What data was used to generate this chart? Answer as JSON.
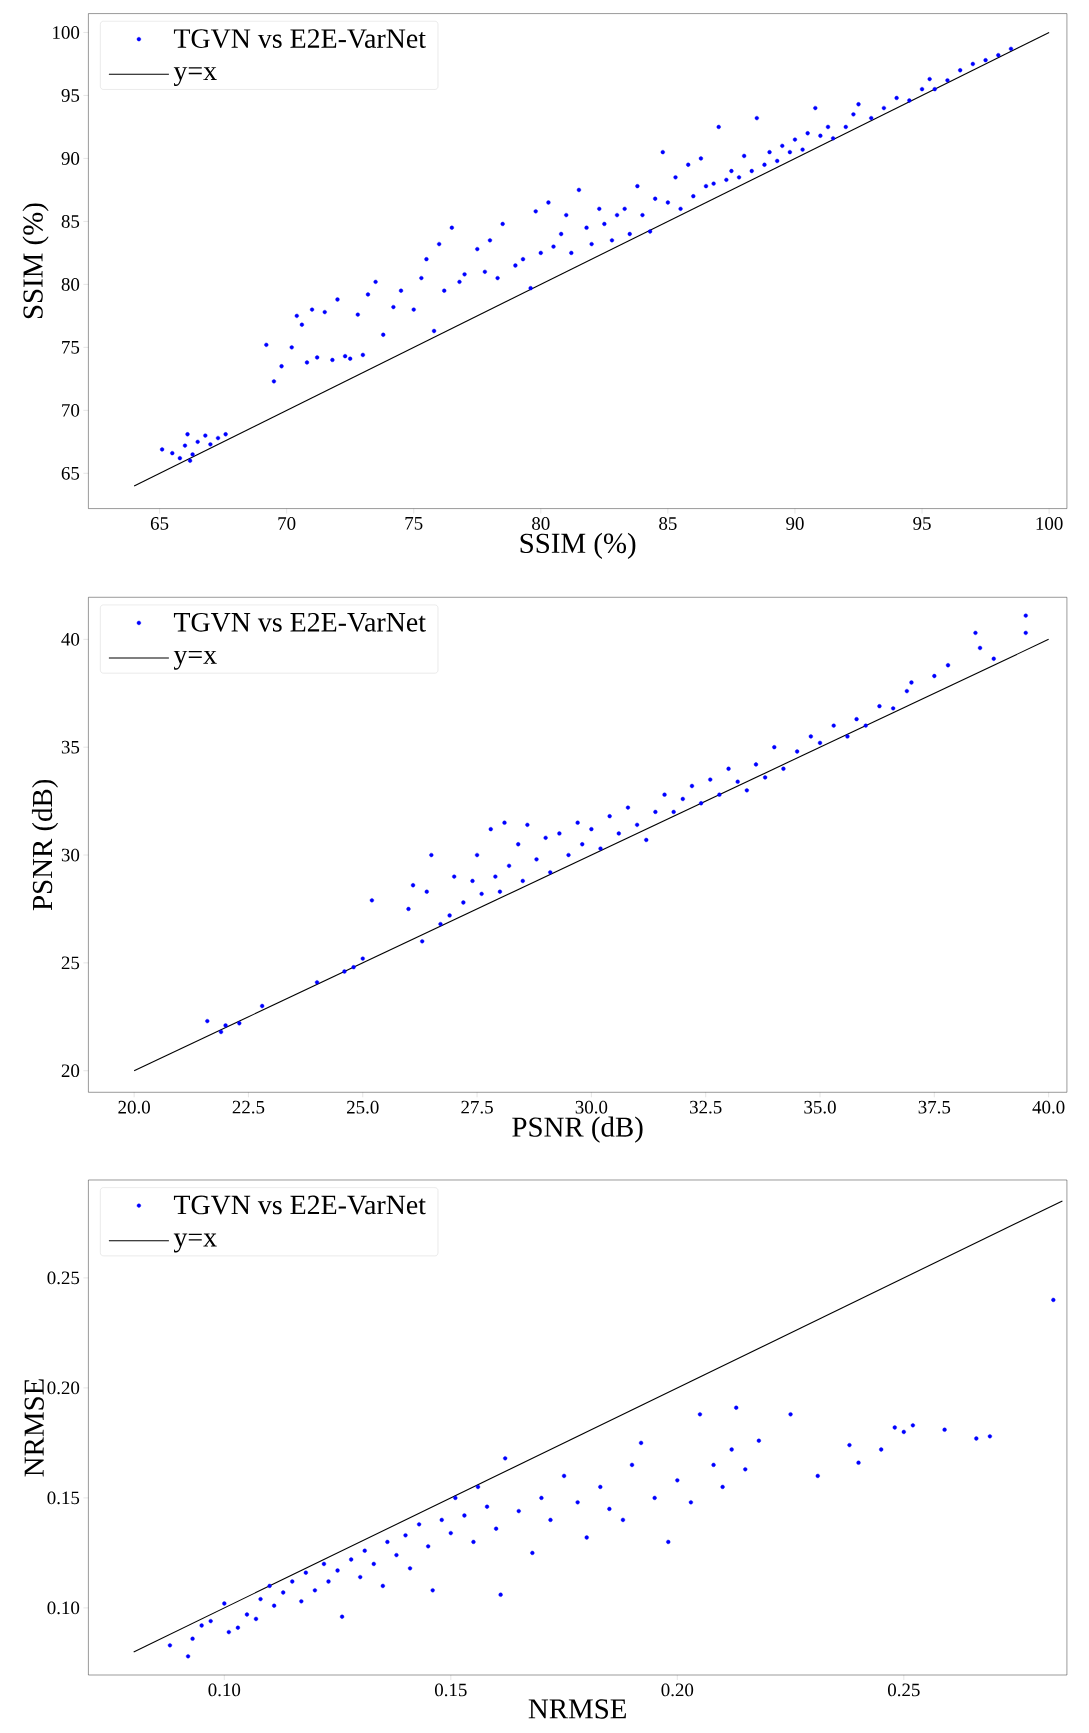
{
  "chart_data": [
    {
      "type": "scatter",
      "xlabel": "SSIM (%)",
      "ylabel": "SSIM (%)",
      "xlim": [
        62.2,
        100.7
      ],
      "ylim": [
        62.2,
        101.5
      ],
      "xticks": [
        65,
        70,
        75,
        80,
        85,
        90,
        95,
        100
      ],
      "yticks": [
        65,
        70,
        75,
        80,
        85,
        90,
        95,
        100
      ],
      "legend": "top left",
      "series": [
        {
          "name": "TGVN vs E2E-VarNet",
          "type": "scatter",
          "marker": "circle",
          "color": "#0000ff",
          "x": [
            65.1,
            65.5,
            65.8,
            66.0,
            66.1,
            66.3,
            66.5,
            66.8,
            67.0,
            67.3,
            67.6,
            66.2,
            69.2,
            69.5,
            69.8,
            70.2,
            70.4,
            70.6,
            70.8,
            71.0,
            71.2,
            71.5,
            71.8,
            72.0,
            72.3,
            72.5,
            72.8,
            73.0,
            73.2,
            73.5,
            73.8,
            74.2,
            74.5,
            75.0,
            75.3,
            75.5,
            75.8,
            76.0,
            76.2,
            76.5,
            76.8,
            77.0,
            77.5,
            77.8,
            78.0,
            78.3,
            78.5,
            79.0,
            79.3,
            79.6,
            79.8,
            80.0,
            80.3,
            80.5,
            80.8,
            81.0,
            81.2,
            81.5,
            81.8,
            82.0,
            82.3,
            82.5,
            82.8,
            83.0,
            83.3,
            83.5,
            83.8,
            84.0,
            84.3,
            84.5,
            84.8,
            85.0,
            85.3,
            85.5,
            85.8,
            86.0,
            86.3,
            86.5,
            86.8,
            87.0,
            87.3,
            87.5,
            87.8,
            88.0,
            88.3,
            88.5,
            88.8,
            89.0,
            89.3,
            89.5,
            89.8,
            90.0,
            90.3,
            90.5,
            90.8,
            91.0,
            91.3,
            91.5,
            92.0,
            92.3,
            92.5,
            93.0,
            93.5,
            94.0,
            94.5,
            95.0,
            95.3,
            95.5,
            96.0,
            96.5,
            97.0,
            97.5,
            98.0,
            98.5
          ],
          "values": [
            66.9,
            66.6,
            66.2,
            67.2,
            68.1,
            66.5,
            67.5,
            68.0,
            67.3,
            67.8,
            68.1,
            66.0,
            75.2,
            72.3,
            73.5,
            75.0,
            77.5,
            76.8,
            73.8,
            78.0,
            74.2,
            77.8,
            74.0,
            78.8,
            74.3,
            74.1,
            77.6,
            74.4,
            79.2,
            80.2,
            76.0,
            78.2,
            79.5,
            78.0,
            80.5,
            82.0,
            76.3,
            83.2,
            79.5,
            84.5,
            80.2,
            80.8,
            82.8,
            81.0,
            83.5,
            80.5,
            84.8,
            81.5,
            82.0,
            79.7,
            85.8,
            82.5,
            86.5,
            83.0,
            84.0,
            85.5,
            82.5,
            87.5,
            84.5,
            83.2,
            86.0,
            84.8,
            83.5,
            85.5,
            86.0,
            84.0,
            87.8,
            85.5,
            84.2,
            86.8,
            90.5,
            86.5,
            88.5,
            86.0,
            89.5,
            87.0,
            90.0,
            87.8,
            88.0,
            92.5,
            88.3,
            89.0,
            88.5,
            90.2,
            89.0,
            93.2,
            89.5,
            90.5,
            89.8,
            91.0,
            90.5,
            91.5,
            90.7,
            92.0,
            94.0,
            91.8,
            92.5,
            91.6,
            92.5,
            93.5,
            94.3,
            93.2,
            94.0,
            94.8,
            94.6,
            95.5,
            96.3,
            95.5,
            96.2,
            97.0,
            97.5,
            97.8,
            98.2,
            98.7
          ]
        },
        {
          "name": "y=x",
          "type": "line",
          "color": "#000000",
          "x": [
            64,
            100
          ],
          "values": [
            64,
            100
          ]
        }
      ]
    },
    {
      "type": "scatter",
      "xlabel": "PSNR (dB)",
      "ylabel": "PSNR (dB)",
      "xlim": [
        19.0,
        40.4
      ],
      "ylim": [
        19.0,
        41.95
      ],
      "xticks": [
        {
          "value": 20,
          "label": "20.0"
        },
        22.5,
        {
          "value": 25,
          "label": "25.0"
        },
        27.5,
        {
          "value": 30,
          "label": "30.0"
        },
        32.5,
        {
          "value": 35,
          "label": "35.0"
        },
        37.5,
        {
          "value": 40,
          "label": "40.0"
        }
      ],
      "yticks": [
        20,
        25,
        30,
        35,
        40
      ],
      "legend": "top left",
      "series": [
        {
          "name": "TGVN vs E2E-VarNet",
          "type": "scatter",
          "marker": "circle",
          "color": "#0000ff",
          "x": [
            21.6,
            21.9,
            22.0,
            22.3,
            22.8,
            24.0,
            24.6,
            24.8,
            25.0,
            25.2,
            26.0,
            26.1,
            26.3,
            26.4,
            26.5,
            26.7,
            26.9,
            27.0,
            27.2,
            27.4,
            27.5,
            27.6,
            27.8,
            27.9,
            28.0,
            28.1,
            28.2,
            28.4,
            28.5,
            28.6,
            28.8,
            29.0,
            29.1,
            29.3,
            29.5,
            29.7,
            29.8,
            30.0,
            30.2,
            30.4,
            30.6,
            30.8,
            31.0,
            31.2,
            31.4,
            31.6,
            31.8,
            32.0,
            32.2,
            32.4,
            32.6,
            32.8,
            33.0,
            33.2,
            33.4,
            33.6,
            33.8,
            34.0,
            34.2,
            34.5,
            34.8,
            35.0,
            35.3,
            35.6,
            35.8,
            36.0,
            36.3,
            36.6,
            36.9,
            37.0,
            37.5,
            37.8,
            38.4,
            38.5,
            38.8,
            39.5,
            39.5
          ],
          "values": [
            22.3,
            21.8,
            22.1,
            22.2,
            23.0,
            24.1,
            24.6,
            24.8,
            25.2,
            27.9,
            27.5,
            28.6,
            26.0,
            28.3,
            30.0,
            26.8,
            27.2,
            29.0,
            27.8,
            28.8,
            30.0,
            28.2,
            31.2,
            29.0,
            28.3,
            31.5,
            29.5,
            30.5,
            28.8,
            31.4,
            29.8,
            30.8,
            29.2,
            31.0,
            30.0,
            31.5,
            30.5,
            31.2,
            30.3,
            31.8,
            31.0,
            32.2,
            31.4,
            30.7,
            32.0,
            32.8,
            32.0,
            32.6,
            33.2,
            32.4,
            33.5,
            32.8,
            34.0,
            33.4,
            33.0,
            34.2,
            33.6,
            35.0,
            34.0,
            34.8,
            35.5,
            35.2,
            36.0,
            35.5,
            36.3,
            36.0,
            36.9,
            36.8,
            37.6,
            38.0,
            38.3,
            38.8,
            40.3,
            39.6,
            39.1,
            41.1,
            40.3
          ]
        },
        {
          "name": "y=x",
          "type": "line",
          "color": "#000000",
          "x": [
            20,
            40
          ],
          "values": [
            20,
            40
          ]
        }
      ]
    },
    {
      "type": "scatter",
      "xlabel": "NRMSE",
      "ylabel": "NRMSE",
      "xlim": [
        0.07,
        0.286
      ],
      "ylim": [
        0.0695,
        0.2945
      ],
      "xticks": [
        {
          "value": 0.1,
          "label": "0.10"
        },
        0.15,
        {
          "value": 0.2,
          "label": "0.20"
        },
        0.25
      ],
      "yticks": [
        {
          "value": 0.1,
          "label": "0.10"
        },
        0.15,
        {
          "value": 0.2,
          "label": "0.20"
        },
        0.25
      ],
      "legend": "top left",
      "series": [
        {
          "name": "TGVN vs E2E-VarNet",
          "type": "scatter",
          "marker": "circle",
          "color": "#0000ff",
          "x": [
            0.088,
            0.092,
            0.093,
            0.095,
            0.097,
            0.1,
            0.101,
            0.103,
            0.105,
            0.107,
            0.108,
            0.11,
            0.111,
            0.113,
            0.115,
            0.117,
            0.118,
            0.12,
            0.122,
            0.123,
            0.125,
            0.126,
            0.128,
            0.13,
            0.131,
            0.133,
            0.135,
            0.136,
            0.138,
            0.14,
            0.141,
            0.143,
            0.145,
            0.146,
            0.148,
            0.15,
            0.151,
            0.153,
            0.155,
            0.156,
            0.158,
            0.16,
            0.161,
            0.162,
            0.165,
            0.168,
            0.17,
            0.172,
            0.175,
            0.178,
            0.18,
            0.183,
            0.185,
            0.188,
            0.19,
            0.192,
            0.195,
            0.198,
            0.2,
            0.203,
            0.205,
            0.208,
            0.21,
            0.212,
            0.213,
            0.215,
            0.218,
            0.225,
            0.231,
            0.238,
            0.24,
            0.245,
            0.248,
            0.25,
            0.252,
            0.259,
            0.266,
            0.269,
            0.283
          ],
          "values": [
            0.083,
            0.078,
            0.086,
            0.092,
            0.094,
            0.102,
            0.089,
            0.091,
            0.097,
            0.095,
            0.104,
            0.11,
            0.101,
            0.107,
            0.112,
            0.103,
            0.116,
            0.108,
            0.12,
            0.112,
            0.117,
            0.096,
            0.122,
            0.114,
            0.126,
            0.12,
            0.11,
            0.13,
            0.124,
            0.133,
            0.118,
            0.138,
            0.128,
            0.108,
            0.14,
            0.134,
            0.15,
            0.142,
            0.13,
            0.155,
            0.146,
            0.136,
            0.106,
            0.168,
            0.144,
            0.125,
            0.15,
            0.14,
            0.16,
            0.148,
            0.132,
            0.155,
            0.145,
            0.14,
            0.165,
            0.175,
            0.15,
            0.13,
            0.158,
            0.148,
            0.188,
            0.165,
            0.155,
            0.172,
            0.191,
            0.163,
            0.176,
            0.188,
            0.16,
            0.174,
            0.166,
            0.172,
            0.182,
            0.18,
            0.183,
            0.181,
            0.177,
            0.178,
            0.24
          ]
        },
        {
          "name": "y=x",
          "type": "line",
          "color": "#000000",
          "x": [
            0.08,
            0.285
          ],
          "values": [
            0.08,
            0.285
          ]
        }
      ]
    }
  ]
}
